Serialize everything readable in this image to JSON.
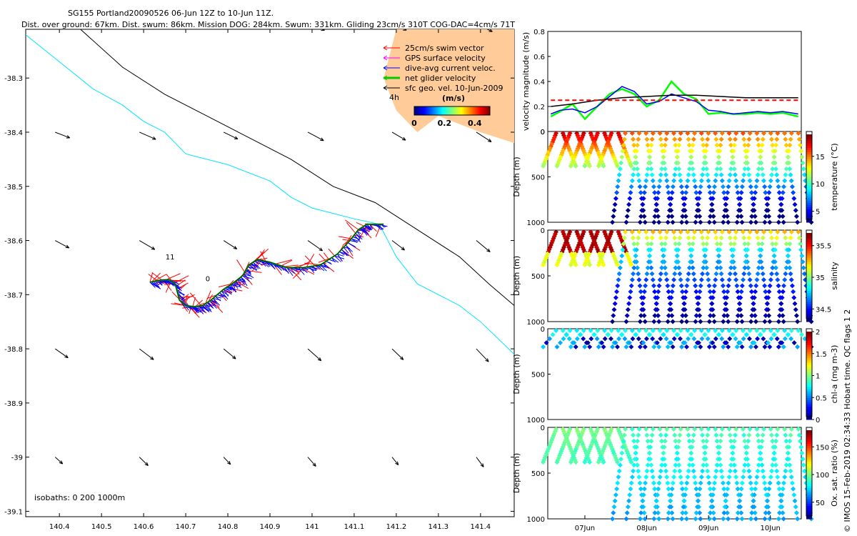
{
  "header": {
    "title": "SG155 Portland20090526 06-Jun 12Z to 10-Jun 11Z.",
    "subtitle": "Dist. over ground: 67km. Dist. swum: 86km. Mission DOG: 284km. Swum: 331km. Gliding 23cm/s 310T COG-DAC=4cm/s 71T"
  },
  "credit": "© IMOS 15-Feb-2019 02:34:33 Hobart time. QC flags 1 2",
  "chart_data": [
    {
      "id": "map",
      "type": "scatter",
      "title": "Glider track map",
      "xlim": [
        140.32,
        141.48
      ],
      "ylim": [
        -39.11,
        -38.21
      ],
      "xticks": [
        140.4,
        140.5,
        140.6,
        140.7,
        140.8,
        140.9,
        141,
        141.1,
        141.2,
        141.3,
        141.4
      ],
      "xtick_labels": [
        "140.4",
        "140.5",
        "140.6",
        "140.7",
        "140.8",
        "140.9",
        "141",
        "141.1",
        "141.2",
        "141.3",
        "141.4"
      ],
      "yticks": [
        -38.3,
        -38.4,
        -38.5,
        -38.6,
        -38.7,
        -38.8,
        -38.9,
        -39,
        -39.1
      ],
      "ytick_labels": [
        "-38.3",
        "-38.4",
        "-38.5",
        "-38.6",
        "-38.7",
        "-38.8",
        "-38.9",
        "-39",
        "-39.1"
      ],
      "legend": [
        {
          "label": "25cm/s swim vector",
          "color": "#ff0000"
        },
        {
          "label": "GPS surface velocity",
          "color": "#ff00ff"
        },
        {
          "label": "dive-avg current veloc.",
          "color": "#0000ff"
        },
        {
          "label": "net glider velocity",
          "color": "#00cc00"
        },
        {
          "label": "sfc geo. vel. 10-Jun-2009",
          "color": "#000000"
        }
      ],
      "scale_label": "4h",
      "colorbar": {
        "label": "(m/s)",
        "ticks": [
          "0",
          "0.2",
          "0.4"
        ],
        "ticks_v": [
          0,
          0.2,
          0.4
        ],
        "range": [
          0,
          0.5
        ]
      },
      "isobath_label": "isobaths: 0   200   1000m",
      "track_labels": [
        {
          "text": "11",
          "x": 140.652,
          "y": -38.635
        },
        {
          "text": "0",
          "x": 140.747,
          "y": -38.675
        }
      ],
      "track": [
        [
          140.615,
          -38.677
        ],
        [
          140.64,
          -38.673
        ],
        [
          140.66,
          -38.672
        ],
        [
          140.675,
          -38.68
        ],
        [
          140.685,
          -38.71
        ],
        [
          140.7,
          -38.72
        ],
        [
          140.72,
          -38.722
        ],
        [
          140.74,
          -38.72
        ],
        [
          140.76,
          -38.71
        ],
        [
          140.79,
          -38.69
        ],
        [
          140.81,
          -38.68
        ],
        [
          140.835,
          -38.665
        ],
        [
          140.85,
          -38.645
        ],
        [
          140.87,
          -38.635
        ],
        [
          140.9,
          -38.64
        ],
        [
          140.94,
          -38.65
        ],
        [
          140.98,
          -38.65
        ],
        [
          141.02,
          -38.645
        ],
        [
          141.06,
          -38.625
        ],
        [
          141.09,
          -38.6
        ],
        [
          141.11,
          -38.58
        ],
        [
          141.13,
          -38.57
        ],
        [
          141.17,
          -38.57
        ]
      ],
      "isobath_0m": [
        [
          140.32,
          -38.22
        ],
        [
          140.4,
          -38.27
        ],
        [
          140.48,
          -38.32
        ],
        [
          140.55,
          -38.35
        ],
        [
          140.6,
          -38.38
        ],
        [
          140.65,
          -38.4
        ],
        [
          140.7,
          -38.44
        ],
        [
          140.8,
          -38.46
        ],
        [
          140.9,
          -38.49
        ],
        [
          140.95,
          -38.52
        ],
        [
          141,
          -38.54
        ],
        [
          141.05,
          -38.55
        ],
        [
          141.1,
          -38.56
        ],
        [
          141.16,
          -38.57
        ],
        [
          141.2,
          -38.63
        ],
        [
          141.25,
          -38.68
        ],
        [
          141.3,
          -38.7
        ],
        [
          141.35,
          -38.72
        ],
        [
          141.4,
          -38.75
        ],
        [
          141.44,
          -38.78
        ],
        [
          141.48,
          -38.81
        ]
      ],
      "isobath_200m": [
        [
          140.45,
          -38.21
        ],
        [
          140.55,
          -38.28
        ],
        [
          140.65,
          -38.33
        ],
        [
          140.75,
          -38.37
        ],
        [
          140.85,
          -38.41
        ],
        [
          140.95,
          -38.45
        ],
        [
          141.05,
          -38.5
        ],
        [
          141.15,
          -38.53
        ],
        [
          141.25,
          -38.58
        ],
        [
          141.35,
          -38.63
        ],
        [
          141.42,
          -38.68
        ],
        [
          141.48,
          -38.72
        ]
      ]
    },
    {
      "id": "velocity",
      "type": "line",
      "ylabel": "velocity magnitude (m/s)",
      "xlim": [
        6.4,
        10.5
      ],
      "ylim": [
        0,
        0.8
      ],
      "yticks": [
        0,
        0.2,
        0.4,
        0.6,
        0.8
      ],
      "ytick_labels": [
        "0",
        "0.2",
        "0.4",
        "0.6",
        "0.8"
      ],
      "series": [
        {
          "name": "net glider velocity",
          "color": "#00ff00",
          "x": [
            6.45,
            6.6,
            6.8,
            7.0,
            7.2,
            7.4,
            7.6,
            7.8,
            8.0,
            8.2,
            8.4,
            8.6,
            8.8,
            9.0,
            9.2,
            9.4,
            9.6,
            9.8,
            10.0,
            10.2,
            10.45
          ],
          "values": [
            0.12,
            0.16,
            0.22,
            0.1,
            0.2,
            0.3,
            0.34,
            0.3,
            0.2,
            0.25,
            0.4,
            0.3,
            0.26,
            0.14,
            0.15,
            0.14,
            0.14,
            0.15,
            0.14,
            0.15,
            0.12
          ]
        },
        {
          "name": "dive-avg current veloc.",
          "color": "#0000ff",
          "x": [
            6.45,
            6.6,
            6.8,
            7.0,
            7.2,
            7.4,
            7.6,
            7.8,
            8.0,
            8.2,
            8.4,
            8.6,
            8.8,
            9.0,
            9.2,
            9.4,
            9.6,
            9.8,
            10.0,
            10.2,
            10.45
          ],
          "values": [
            0.14,
            0.17,
            0.18,
            0.15,
            0.2,
            0.28,
            0.36,
            0.32,
            0.22,
            0.24,
            0.3,
            0.27,
            0.24,
            0.17,
            0.16,
            0.14,
            0.15,
            0.16,
            0.15,
            0.16,
            0.14
          ]
        },
        {
          "name": "sfc geo. vel.",
          "color": "#000000",
          "x": [
            6.45,
            6.8,
            7.2,
            7.6,
            8.0,
            8.4,
            8.8,
            9.2,
            9.6,
            10.0,
            10.45
          ],
          "values": [
            0.2,
            0.22,
            0.25,
            0.27,
            0.28,
            0.29,
            0.29,
            0.28,
            0.27,
            0.27,
            0.27
          ]
        },
        {
          "name": "mean",
          "color": "#ff0000",
          "x": [
            6.45,
            10.45
          ],
          "values": [
            0.25,
            0.25
          ]
        }
      ]
    },
    {
      "id": "temperature",
      "type": "scatter",
      "ylabel": "Depth (m)",
      "clabel": "temperature (°C)",
      "ylim": [
        0,
        1000
      ],
      "yticks": [
        0,
        500,
        1000
      ],
      "ytick_labels": [
        "0",
        "500",
        "1000"
      ],
      "cticks": [
        5,
        10,
        15
      ],
      "ctick_labels": [
        "5",
        "10",
        "15"
      ],
      "crange": [
        3,
        19
      ]
    },
    {
      "id": "salinity",
      "type": "scatter",
      "ylabel": "Depth (m)",
      "clabel": "salinity",
      "ylim": [
        0,
        1000
      ],
      "yticks": [
        0,
        500,
        1000
      ],
      "ytick_labels": [
        "0",
        "500",
        "1000"
      ],
      "cticks": [
        34.5,
        35,
        35.5
      ],
      "ctick_labels": [
        "34.5",
        "35",
        "35.5"
      ],
      "crange": [
        34.3,
        35.7
      ]
    },
    {
      "id": "chla",
      "type": "scatter",
      "ylabel": "Depth (m)",
      "clabel": "chl-a (mg m-3)",
      "ylim": [
        0,
        1000
      ],
      "yticks": [
        0,
        500,
        1000
      ],
      "ytick_labels": [
        "0",
        "500",
        "1000"
      ],
      "cticks": [
        0,
        0.5,
        1,
        1.5,
        2
      ],
      "ctick_labels": [
        "0",
        "0.5",
        "1",
        "1.5",
        "2"
      ],
      "crange": [
        0,
        2
      ]
    },
    {
      "id": "oxygen",
      "type": "scatter",
      "ylabel": "Depth (m)",
      "clabel": "Ox. sat. ratio (%)",
      "ylim": [
        0,
        1000
      ],
      "yticks": [
        0,
        500,
        1000
      ],
      "ytick_labels": [
        "0",
        "500",
        "1000"
      ],
      "cticks": [
        50,
        100,
        150
      ],
      "ctick_labels": [
        "50",
        "100",
        "150"
      ],
      "crange": [
        20,
        180
      ]
    }
  ],
  "time_axis": {
    "xlim": [
      6.4,
      10.5
    ],
    "ticks": [
      7,
      8,
      9,
      10
    ],
    "labels": [
      "07Jun",
      "08Jun",
      "09Jun",
      "10Jun"
    ]
  }
}
